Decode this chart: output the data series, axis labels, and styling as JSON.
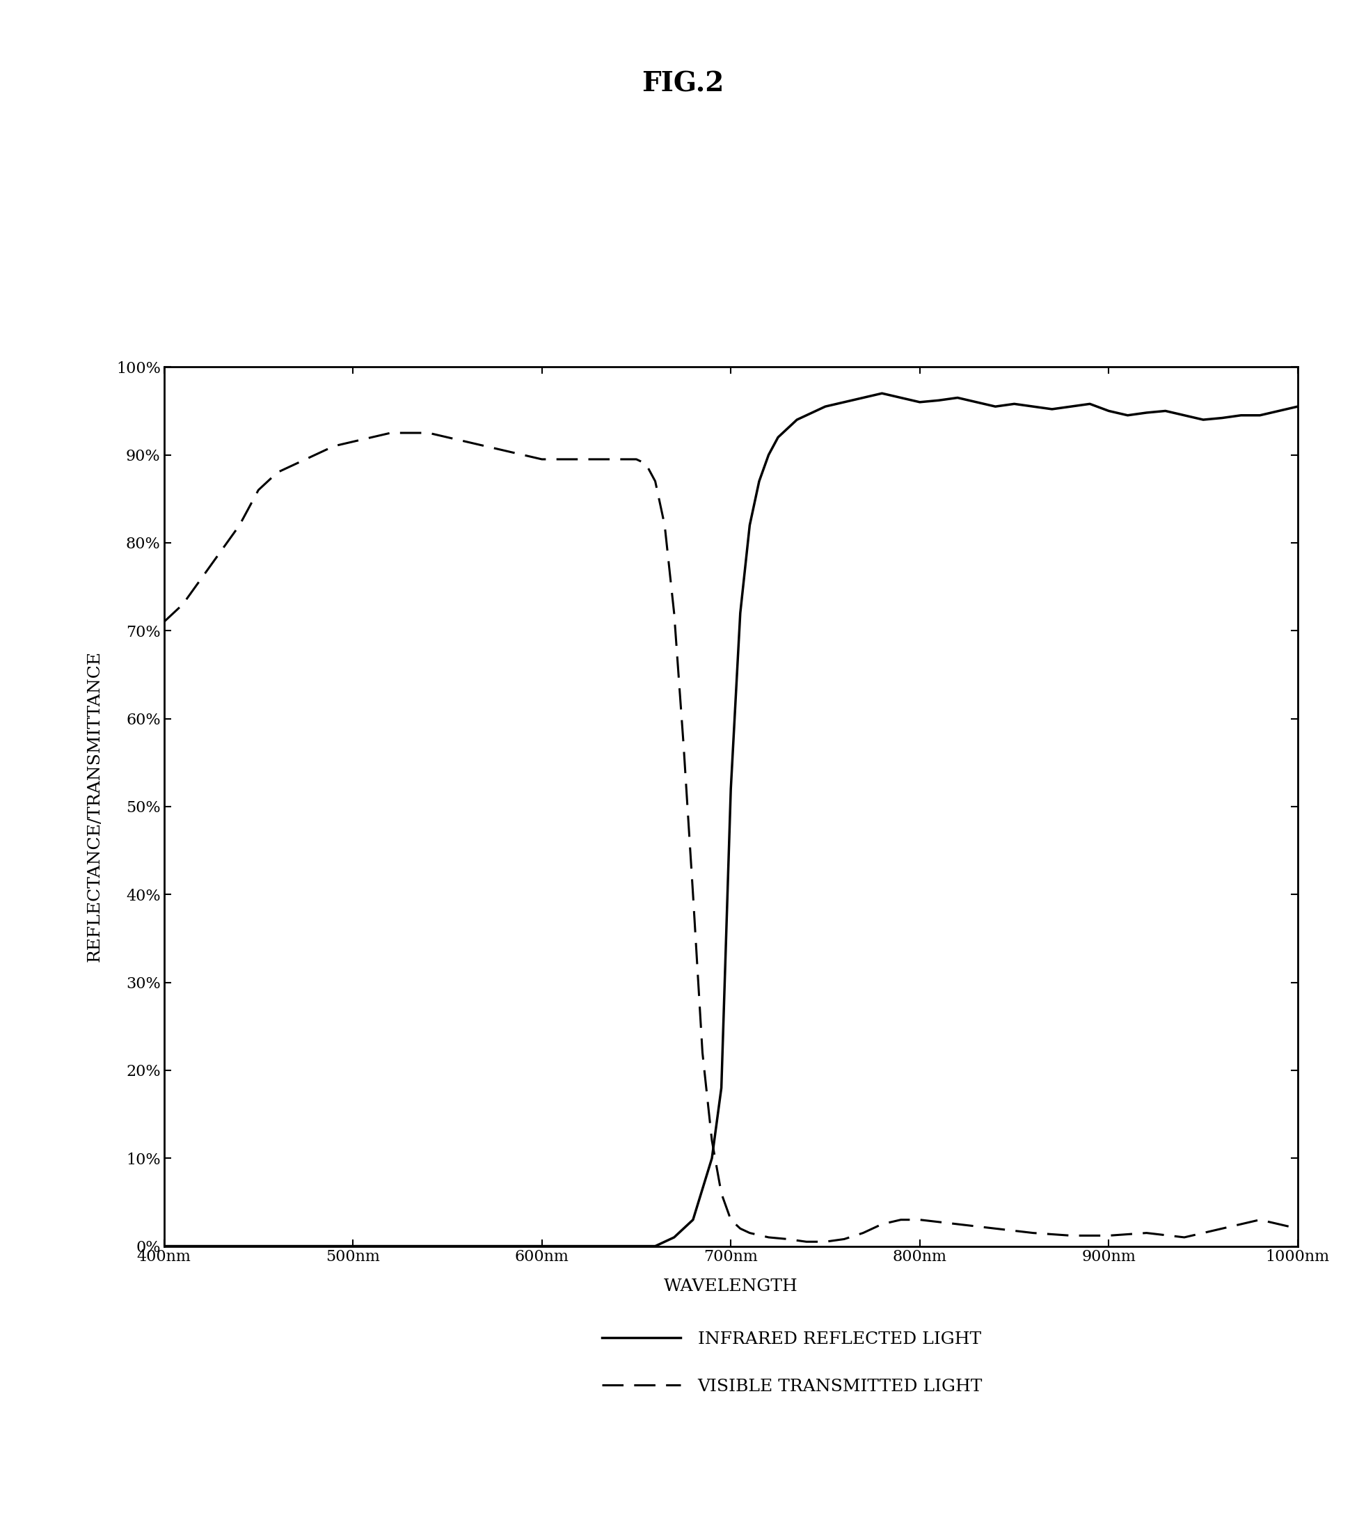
{
  "title": "FIG.2",
  "xlabel": "WAVELENGTH",
  "ylabel": "REFLECTANCE/TRANSMITTANCE",
  "xlim": [
    400,
    1000
  ],
  "ylim": [
    0,
    100
  ],
  "xtick_labels": [
    "400nm",
    "500nm",
    "600nm",
    "700nm",
    "800nm",
    "900nm",
    "1000nm"
  ],
  "xtick_values": [
    400,
    500,
    600,
    700,
    800,
    900,
    1000
  ],
  "ytick_labels": [
    "0%",
    "10%",
    "20%",
    "30%",
    "40%",
    "50%",
    "60%",
    "70%",
    "80%",
    "90%",
    "100%"
  ],
  "ytick_values": [
    0,
    10,
    20,
    30,
    40,
    50,
    60,
    70,
    80,
    90,
    100
  ],
  "infrared_x": [
    400,
    410,
    420,
    430,
    440,
    450,
    460,
    470,
    480,
    490,
    500,
    510,
    520,
    530,
    540,
    550,
    560,
    570,
    580,
    590,
    600,
    610,
    620,
    630,
    640,
    650,
    660,
    670,
    680,
    690,
    695,
    700,
    705,
    710,
    715,
    720,
    725,
    730,
    735,
    740,
    745,
    750,
    760,
    770,
    780,
    790,
    800,
    810,
    820,
    830,
    840,
    850,
    860,
    870,
    880,
    890,
    900,
    910,
    920,
    930,
    940,
    950,
    960,
    970,
    980,
    990,
    1000
  ],
  "infrared_y": [
    0,
    0,
    0,
    0,
    0,
    0,
    0,
    0,
    0,
    0,
    0,
    0,
    0,
    0,
    0,
    0,
    0,
    0,
    0,
    0,
    0,
    0,
    0,
    0,
    0,
    0,
    0,
    1,
    3,
    10,
    18,
    52,
    72,
    82,
    87,
    90,
    92,
    93,
    94,
    94.5,
    95,
    95.5,
    96,
    96.5,
    97,
    96.5,
    96,
    96.2,
    96.5,
    96,
    95.5,
    95.8,
    95.5,
    95.2,
    95.5,
    95.8,
    95,
    94.5,
    94.8,
    95,
    94.5,
    94,
    94.2,
    94.5,
    94.5,
    95,
    95.5
  ],
  "visible_x": [
    400,
    410,
    420,
    430,
    440,
    450,
    460,
    470,
    480,
    490,
    500,
    510,
    520,
    530,
    540,
    550,
    560,
    570,
    580,
    590,
    600,
    610,
    620,
    625,
    630,
    635,
    640,
    645,
    650,
    655,
    660,
    665,
    670,
    675,
    680,
    685,
    690,
    695,
    700,
    705,
    710,
    720,
    730,
    740,
    750,
    760,
    770,
    780,
    790,
    800,
    820,
    840,
    860,
    880,
    900,
    920,
    940,
    960,
    980,
    1000
  ],
  "visible_y": [
    71,
    73,
    76,
    79,
    82,
    86,
    88,
    89,
    90,
    91,
    91.5,
    92,
    92.5,
    92.5,
    92.5,
    92,
    91.5,
    91,
    90.5,
    90,
    89.5,
    89.5,
    89.5,
    89.5,
    89.5,
    89.5,
    89.5,
    89.5,
    89.5,
    89,
    87,
    82,
    72,
    57,
    40,
    22,
    12,
    6,
    3,
    2,
    1.5,
    1,
    0.8,
    0.5,
    0.5,
    0.8,
    1.5,
    2.5,
    3,
    3,
    2.5,
    2,
    1.5,
    1.2,
    1.2,
    1.5,
    1,
    2,
    3,
    2
  ],
  "line_color": "#000000",
  "background_color": "#ffffff",
  "title_fontsize": 28,
  "axis_label_fontsize": 18,
  "tick_fontsize": 16,
  "legend_fontsize": 18,
  "legend_label_infrared": "INFRARED REFLECTED LIGHT",
  "legend_label_visible": "VISIBLE TRANSMITTED LIGHT"
}
